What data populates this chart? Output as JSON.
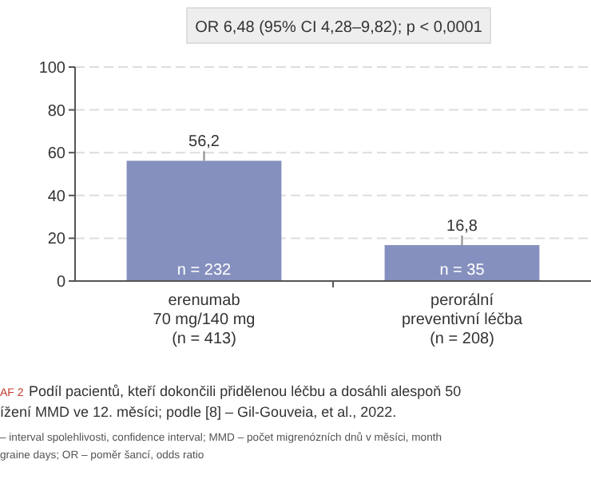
{
  "chart_data": {
    "type": "bar",
    "categories": [
      "erenumab\n70 mg/140 mg\n(n = 413)",
      "perorální\npreventivní léčba\n(n = 208)"
    ],
    "values": [
      56.2,
      16.8
    ],
    "color": "#8590be",
    "value_labels": [
      "56,2",
      "16,8"
    ],
    "ylim": [
      0,
      100
    ],
    "yticks": [
      0,
      20,
      40,
      60,
      80,
      100
    ],
    "grid": "y",
    "annotations": [
      {
        "text": "OR 6,48 (95% CI 4,28–9,82); p < 0,0001"
      },
      {
        "text": "n = 232",
        "x": "erenumab\n70 mg/140 mg\n(n = 413)",
        "y": 0
      },
      {
        "text": "n = 35",
        "x": "perorální\npreventivní léčba\n(n = 208)",
        "y": 0
      },
      {
        "text": "AF 2"
      },
      {
        "text": "Podíl pacientů, kteří dokončili přidělenou léčbu a dosáhli alespoň 50"
      },
      {
        "text": "ížení MMD ve 12. měsíci; podle [8] – Gil-Gouveia, et al., 2022."
      },
      {
        "text": "– interval spolehlivosti, confidence interval; MMD – počet migrenózních dnů v měsíci, month"
      },
      {
        "text": "graine days; OR – poměr šancí, odds ratio"
      }
    ]
  }
}
